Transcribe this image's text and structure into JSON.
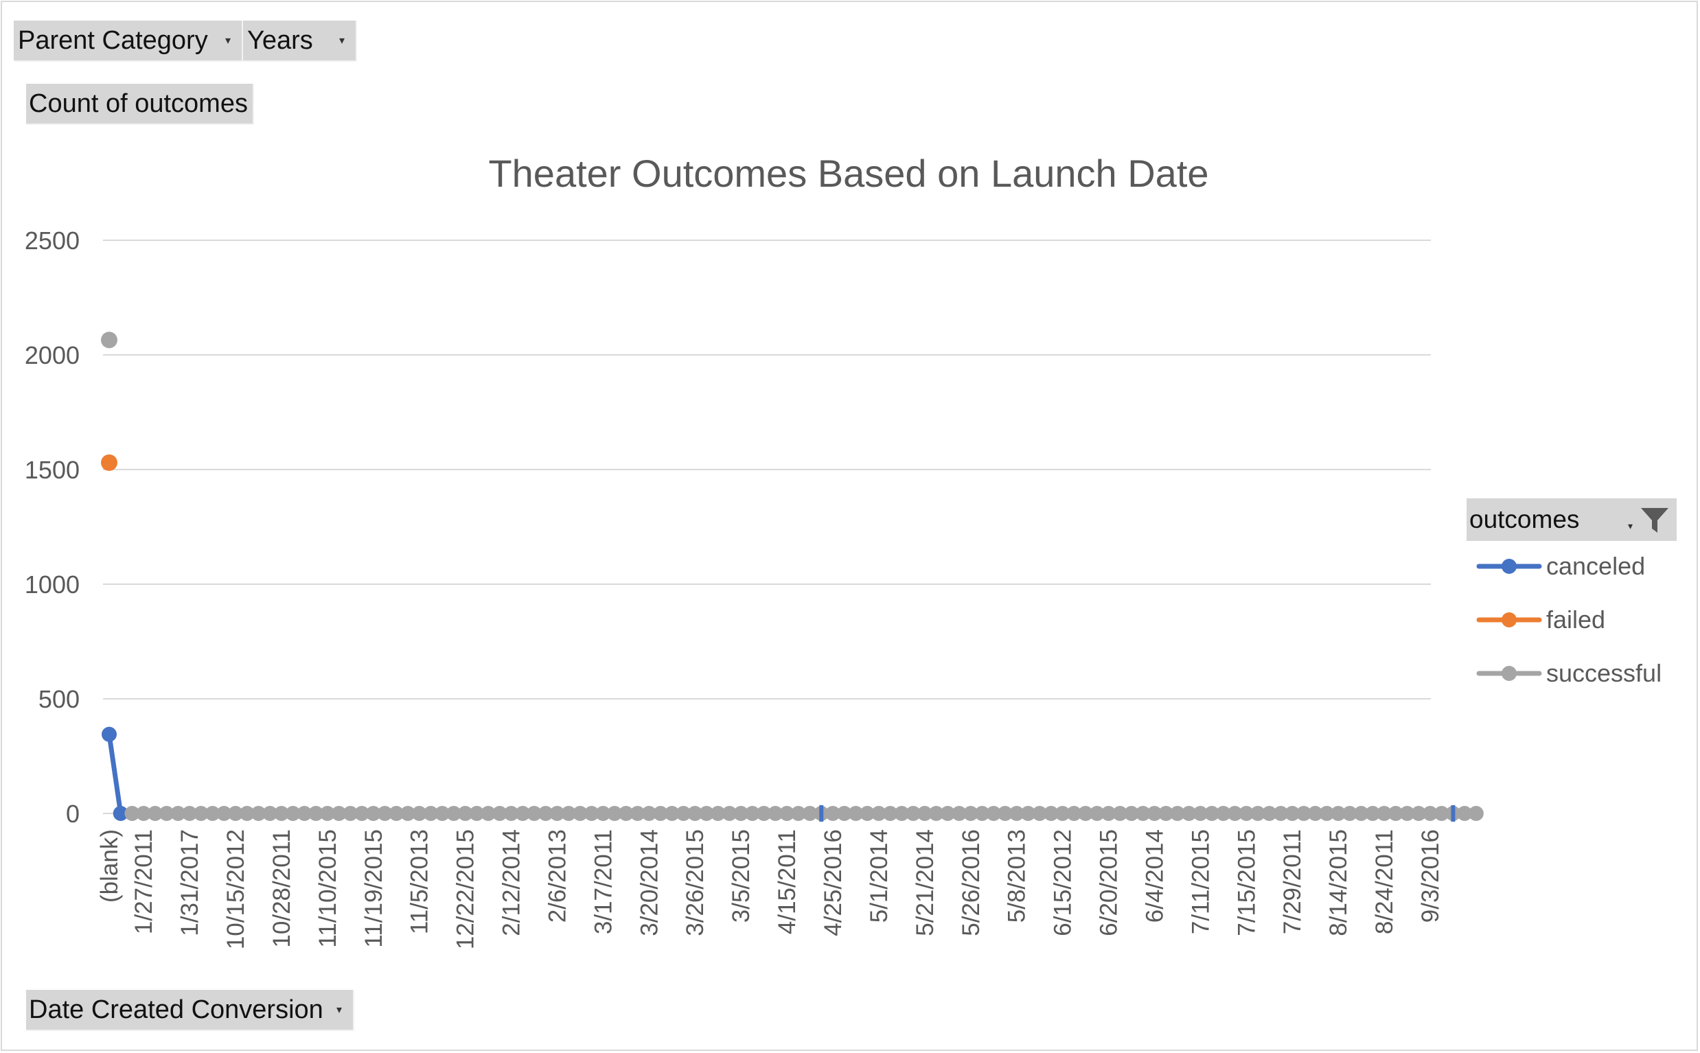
{
  "filters": {
    "parent_category": "Parent Category",
    "years": "Years",
    "values_field": "Count of outcomes",
    "axis_field": "Date Created Conversion"
  },
  "legend": {
    "title": "outcomes",
    "items": [
      {
        "label": "canceled",
        "color": "#4472c4"
      },
      {
        "label": "failed",
        "color": "#ed7d31"
      },
      {
        "label": "successful",
        "color": "#a5a5a5"
      }
    ]
  },
  "chart_data": {
    "type": "line",
    "title": "Theater Outcomes Based on Launch Date",
    "xlabel": "",
    "ylabel": "",
    "ylim": [
      0,
      2500
    ],
    "yticks": [
      0,
      500,
      1000,
      1500,
      2000,
      2500
    ],
    "grid": true,
    "legend_position": "right",
    "category_count": 120,
    "tick_labels": [
      "(blank)",
      "1/27/2011",
      "1/31/2017",
      "10/15/2012",
      "10/28/2011",
      "11/10/2015",
      "11/19/2015",
      "11/5/2013",
      "12/22/2015",
      "2/12/2014",
      "2/6/2013",
      "3/17/2011",
      "3/20/2014",
      "3/26/2015",
      "3/5/2015",
      "4/15/2011",
      "4/25/2016",
      "5/1/2014",
      "5/21/2014",
      "5/26/2016",
      "5/8/2013",
      "6/15/2012",
      "6/20/2015",
      "6/4/2014",
      "7/11/2015",
      "7/15/2015",
      "7/29/2011",
      "8/14/2015",
      "8/24/2011",
      "9/3/2016"
    ],
    "series": [
      {
        "name": "canceled",
        "color": "#4472c4",
        "nonzero": [
          [
            0,
            345
          ],
          [
            62,
            0
          ],
          [
            117,
            0
          ]
        ],
        "default": 0,
        "visible_from": 0
      },
      {
        "name": "failed",
        "color": "#ed7d31",
        "nonzero": [
          [
            0,
            1530
          ]
        ],
        "default": null
      },
      {
        "name": "successful",
        "color": "#a5a5a5",
        "nonzero": [
          [
            0,
            2065
          ]
        ],
        "default": 0,
        "points_from": 1
      }
    ]
  }
}
